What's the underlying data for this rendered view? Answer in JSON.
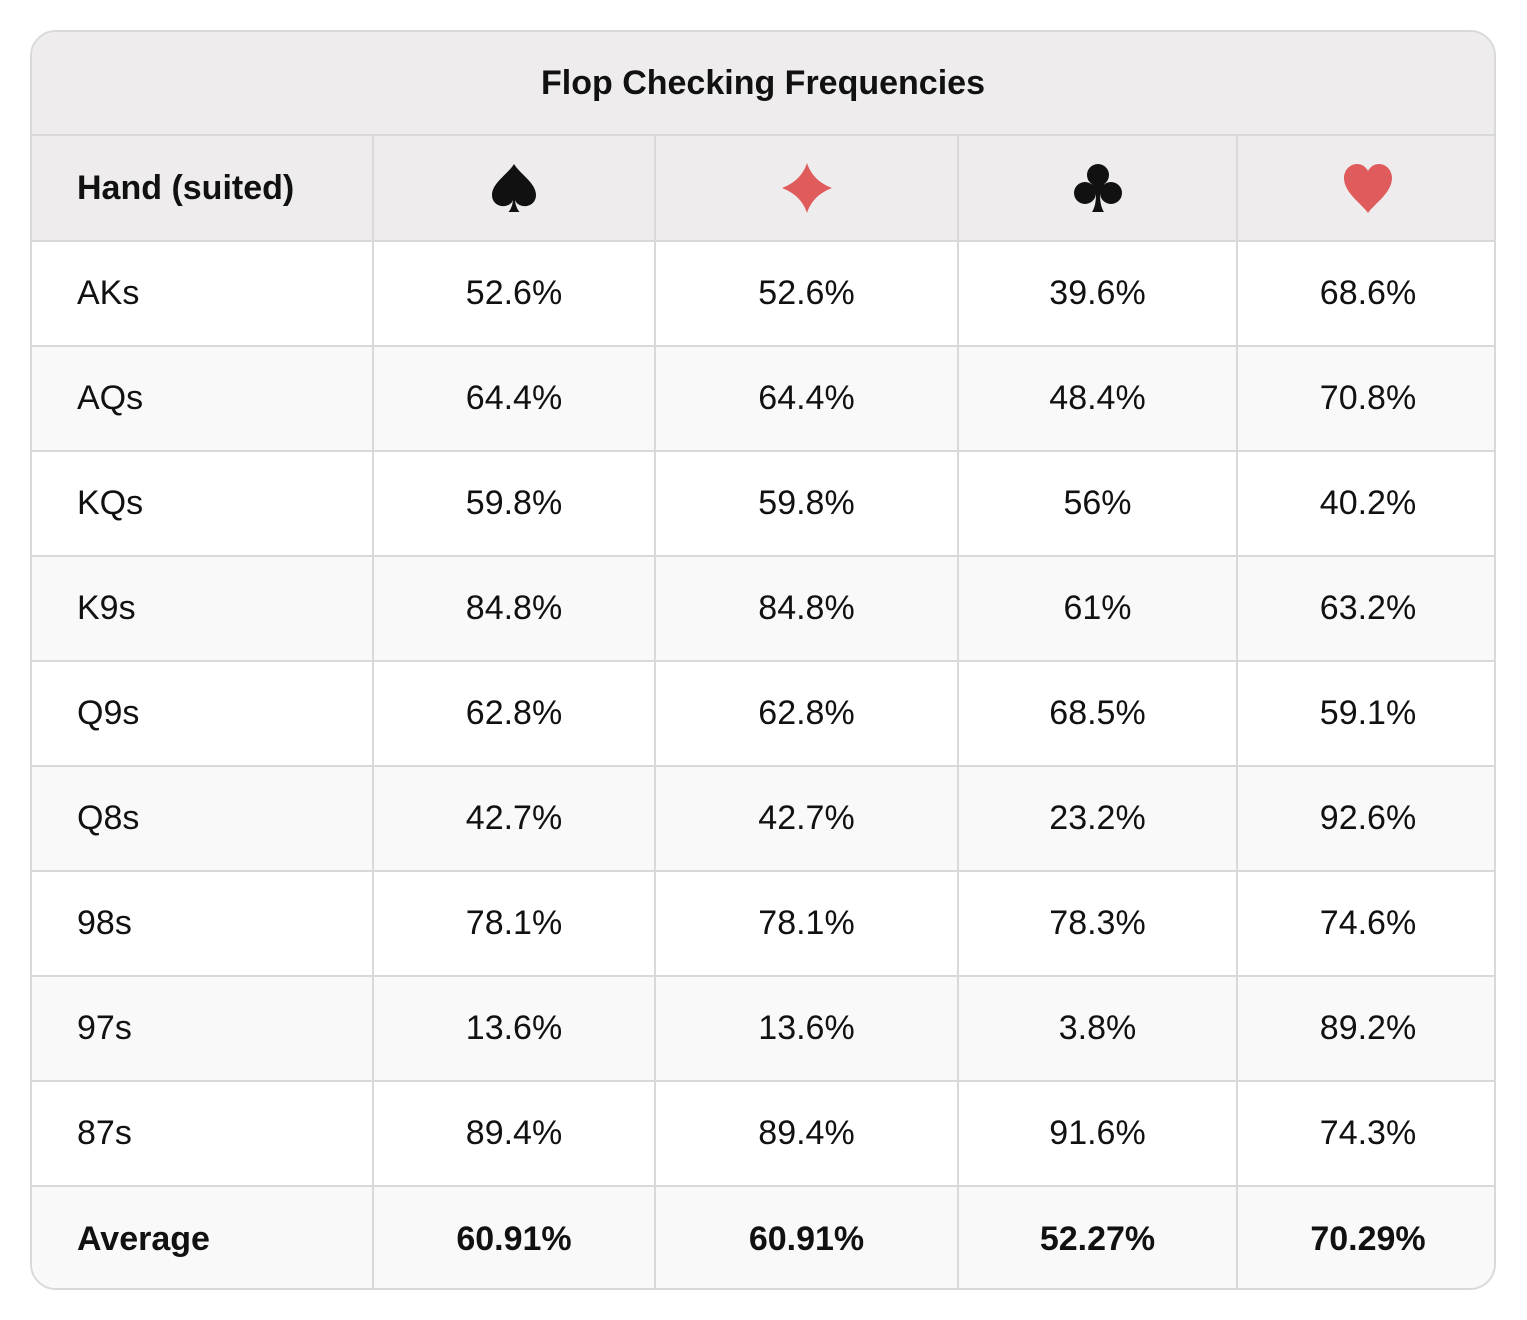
{
  "title": "Flop Checking Frequencies",
  "header": {
    "hand_label": "Hand (suited)",
    "suits": [
      {
        "icon": "spade-icon",
        "color": "#111111"
      },
      {
        "icon": "diamond-icon",
        "color": "#e05c5c"
      },
      {
        "icon": "club-icon",
        "color": "#111111"
      },
      {
        "icon": "heart-icon",
        "color": "#e05c5c"
      }
    ]
  },
  "rows": [
    {
      "hand": "AKs",
      "values": [
        "52.6%",
        "52.6%",
        "39.6%",
        "68.6%"
      ]
    },
    {
      "hand": "AQs",
      "values": [
        "64.4%",
        "64.4%",
        "48.4%",
        "70.8%"
      ]
    },
    {
      "hand": "KQs",
      "values": [
        "59.8%",
        "59.8%",
        "56%",
        "40.2%"
      ]
    },
    {
      "hand": "K9s",
      "values": [
        "84.8%",
        "84.8%",
        "61%",
        "63.2%"
      ]
    },
    {
      "hand": "Q9s",
      "values": [
        "62.8%",
        "62.8%",
        "68.5%",
        "59.1%"
      ]
    },
    {
      "hand": "Q8s",
      "values": [
        "42.7%",
        "42.7%",
        "23.2%",
        "92.6%"
      ]
    },
    {
      "hand": "98s",
      "values": [
        "78.1%",
        "78.1%",
        "78.3%",
        "74.6%"
      ]
    },
    {
      "hand": "97s",
      "values": [
        "13.6%",
        "13.6%",
        "3.8%",
        "89.2%"
      ]
    },
    {
      "hand": "87s",
      "values": [
        "89.4%",
        "89.4%",
        "91.6%",
        "74.3%"
      ]
    }
  ],
  "average": {
    "label": "Average",
    "values": [
      "60.91%",
      "60.91%",
      "52.27%",
      "70.29%"
    ]
  }
}
